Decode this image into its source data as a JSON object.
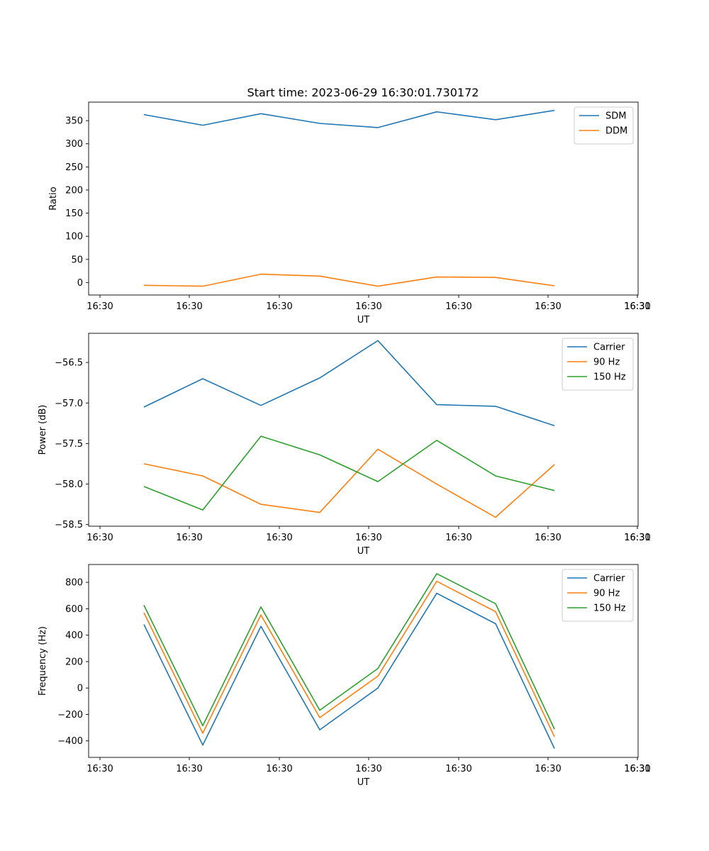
{
  "figure": {
    "title": "Start time: 2023-06-29 16:30:01.730172"
  },
  "colors": {
    "blue": "#1f77b4",
    "orange": "#ff7f0e",
    "green": "#2ca02c"
  },
  "chart_data": [
    {
      "type": "line",
      "title": "Start time: 2023-06-29 16:30:01.730172",
      "xlabel": "UT",
      "ylabel": "Ratio",
      "x_tick_labels": [
        "16:30",
        "16:30",
        "16:30",
        "16:30",
        "16:30",
        "16:30",
        "16:30",
        "16:31"
      ],
      "y_ticks": [
        0,
        50,
        100,
        150,
        200,
        250,
        300,
        350
      ],
      "ylim": [
        -27,
        390
      ],
      "grid": false,
      "legend": "top-right",
      "series": [
        {
          "name": "SDM",
          "color": "#1f77b4",
          "values": [
            363,
            340,
            365,
            344,
            335,
            369,
            352,
            372
          ]
        },
        {
          "name": "DDM",
          "color": "#ff7f0e",
          "values": [
            -6,
            -8,
            18,
            14,
            -8,
            12,
            11,
            -7
          ]
        }
      ]
    },
    {
      "type": "line",
      "xlabel": "UT",
      "ylabel": "Power (dB)",
      "x_tick_labels": [
        "16:30",
        "16:30",
        "16:30",
        "16:30",
        "16:30",
        "16:30",
        "16:30",
        "16:31"
      ],
      "y_ticks": [
        -58.5,
        -58.0,
        -57.5,
        -57.0,
        -56.5
      ],
      "y_tick_labels": [
        "−58.5",
        "−58.0",
        "−57.5",
        "−57.0",
        "−56.5"
      ],
      "ylim": [
        -58.52,
        -56.14
      ],
      "grid": false,
      "legend": "top-right",
      "series": [
        {
          "name": "Carrier",
          "color": "#1f77b4",
          "values": [
            -57.05,
            -56.7,
            -57.03,
            -56.69,
            -56.23,
            -57.02,
            -57.04,
            -57.28
          ]
        },
        {
          "name": "90 Hz",
          "color": "#ff7f0e",
          "values": [
            -57.75,
            -57.9,
            -58.25,
            -58.35,
            -57.57,
            -58.0,
            -58.41,
            -57.76
          ]
        },
        {
          "name": "150 Hz",
          "color": "#2ca02c",
          "values": [
            -58.03,
            -58.32,
            -57.41,
            -57.64,
            -57.97,
            -57.46,
            -57.9,
            -58.08
          ]
        }
      ]
    },
    {
      "type": "line",
      "xlabel": "UT",
      "ylabel": "Frequency (Hz)",
      "x_tick_labels": [
        "16:30",
        "16:30",
        "16:30",
        "16:30",
        "16:30",
        "16:30",
        "16:30",
        "16:31"
      ],
      "y_ticks": [
        -400,
        -200,
        0,
        200,
        400,
        600,
        800
      ],
      "y_tick_labels": [
        "−400",
        "−200",
        "0",
        "200",
        "400",
        "600",
        "800"
      ],
      "ylim": [
        -525,
        935
      ],
      "grid": false,
      "legend": "top-right",
      "series": [
        {
          "name": "Carrier",
          "color": "#1f77b4",
          "values": [
            481,
            -432,
            467,
            -316,
            0,
            717,
            487,
            -458
          ]
        },
        {
          "name": "90 Hz",
          "color": "#ff7f0e",
          "values": [
            570,
            -342,
            553,
            -224,
            90,
            808,
            578,
            -368
          ]
        },
        {
          "name": "150 Hz",
          "color": "#2ca02c",
          "values": [
            627,
            -285,
            614,
            -168,
            148,
            866,
            638,
            -311
          ]
        }
      ]
    }
  ]
}
